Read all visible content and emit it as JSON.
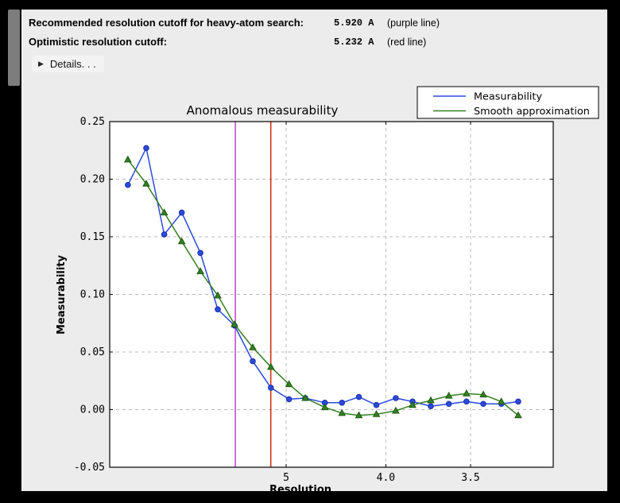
{
  "header": {
    "rows": [
      {
        "label": "Recommended resolution cutoff for heavy-atom search:",
        "value": "5.920 A",
        "note": "(purple line)"
      },
      {
        "label": "Optimistic resolution cutoff:",
        "value": "5.232 A",
        "note": "(red line)"
      }
    ],
    "details": {
      "arrow": "▶",
      "label": "Details. . ."
    }
  },
  "chart_data": {
    "type": "line",
    "title": "Anomalous measurability",
    "xlabel": "Resolution",
    "ylabel": "Measurability",
    "ylim": [
      -0.05,
      0.25
    ],
    "x_axis_note": "resolution in Angstrom, axis linear in 1/d^2, d decreasing to the right",
    "grid": true,
    "x_ticks": [
      {
        "label": "5",
        "value": 5.0
      },
      {
        "label": "4.0",
        "value": 4.0
      },
      {
        "label": "3.5",
        "value": 3.5
      }
    ],
    "y_ticks": [
      {
        "label": "0.25",
        "value": 0.25
      },
      {
        "label": "0.20",
        "value": 0.2
      },
      {
        "label": "0.15",
        "value": 0.15
      },
      {
        "label": "0.10",
        "value": 0.1
      },
      {
        "label": "0.05",
        "value": 0.05
      },
      {
        "label": "0.00",
        "value": 0.0
      },
      {
        "label": "-0.05",
        "value": -0.05
      }
    ],
    "x": [
      15.3,
      10.9,
      8.95,
      7.8,
      6.96,
      6.38,
      5.94,
      5.55,
      5.23,
      4.96,
      4.75,
      4.53,
      4.36,
      4.21,
      4.07,
      3.93,
      3.82,
      3.71,
      3.61,
      3.52,
      3.44,
      3.36,
      3.29
    ],
    "series": [
      {
        "name": "Measurability",
        "color": "#2b4ade",
        "marker_edge": "#1c2fa4",
        "marker": "circle",
        "values": [
          0.195,
          0.227,
          0.152,
          0.171,
          0.136,
          0.087,
          0.073,
          0.042,
          0.019,
          0.009,
          0.01,
          0.006,
          0.006,
          0.011,
          0.004,
          0.01,
          0.007,
          0.003,
          0.005,
          0.007,
          0.005,
          0.005,
          0.007
        ]
      },
      {
        "name": "Smooth approximation",
        "color": "#338022",
        "marker_edge": "#1f5a10",
        "marker": "triangle",
        "values": [
          0.217,
          0.196,
          0.171,
          0.146,
          0.12,
          0.099,
          0.074,
          0.054,
          0.037,
          0.022,
          0.01,
          0.002,
          -0.003,
          -0.005,
          -0.004,
          -0.001,
          0.004,
          0.008,
          0.012,
          0.014,
          0.013,
          0.007,
          -0.005
        ]
      }
    ],
    "vlines": [
      {
        "name": "purple line",
        "resolution": 5.92,
        "color": "#bf4fc9"
      },
      {
        "name": "red line",
        "resolution": 5.232,
        "color": "#cc3311"
      }
    ],
    "legend": {
      "position": "top-right",
      "entries": [
        "Measurability",
        "Smooth approximation"
      ]
    },
    "grid_color": "#b9b9b9",
    "plot_bg": "#ffffff"
  }
}
